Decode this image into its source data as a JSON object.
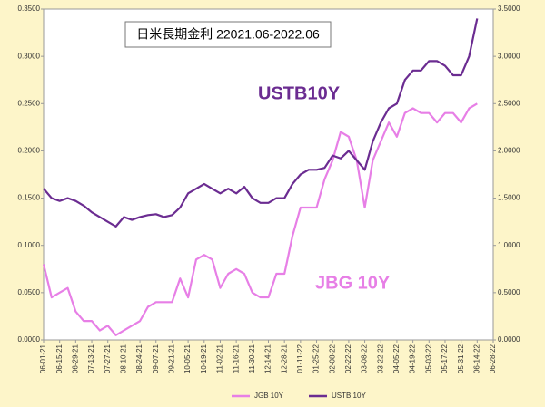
{
  "chart_data": {
    "type": "line",
    "title": "日米長期金利 22021.06-2022.06",
    "annotations": [
      "USTB10Y",
      "JBG 10Y"
    ],
    "categories": [
      "06-01-21",
      null,
      "06-15-21",
      null,
      "06-29-21",
      null,
      "07-13-21",
      null,
      "07-27-21",
      null,
      "08-10-21",
      null,
      "08-24-21",
      null,
      "09-07-21",
      null,
      "09-21-21",
      null,
      "10-05-21",
      null,
      "10-19-21",
      null,
      "11-02-21",
      null,
      "11-16-21",
      null,
      "11-30-21",
      null,
      "12-14-21",
      null,
      "12-28-21",
      null,
      "01-11-22",
      null,
      "01-25-22",
      null,
      "02-08-22",
      null,
      "02-22-22",
      null,
      "03-08-22",
      null,
      "03-22-22",
      null,
      "04-05-22",
      null,
      "04-19-22",
      null,
      "05-03-22",
      null,
      "05-17-22",
      null,
      "05-31-22",
      null,
      "06-14-22",
      null,
      "06-28-22"
    ],
    "series": [
      {
        "name": "JGB 10Y",
        "color": "#e77fe6",
        "values": [
          0.08,
          0.045,
          0.05,
          0.055,
          0.03,
          0.02,
          0.02,
          0.01,
          0.015,
          0.005,
          0.01,
          0.015,
          0.02,
          0.035,
          0.04,
          0.04,
          0.04,
          0.065,
          0.045,
          0.085,
          0.09,
          0.085,
          0.055,
          0.07,
          0.075,
          0.07,
          0.05,
          0.045,
          0.045,
          0.07,
          0.07,
          0.11,
          0.14,
          0.14,
          0.14,
          0.17,
          0.19,
          0.22,
          0.215,
          0.19,
          0.14,
          0.19,
          0.21,
          0.23,
          0.215,
          0.24,
          0.245,
          0.24,
          0.24,
          0.23,
          0.24,
          0.24,
          0.23,
          0.245,
          0.25,
          null,
          null
        ]
      },
      {
        "name": "USTB 10Y",
        "color": "#6b2c91",
        "axis": "y2",
        "values": [
          1.6,
          1.5,
          1.47,
          1.5,
          1.47,
          1.42,
          1.35,
          1.3,
          1.25,
          1.2,
          1.3,
          1.27,
          1.3,
          1.32,
          1.33,
          1.3,
          1.32,
          1.4,
          1.55,
          1.6,
          1.65,
          1.6,
          1.55,
          1.6,
          1.55,
          1.62,
          1.5,
          1.45,
          1.45,
          1.5,
          1.5,
          1.65,
          1.75,
          1.8,
          1.8,
          1.82,
          1.95,
          1.92,
          2.0,
          1.9,
          1.8,
          2.1,
          2.3,
          2.45,
          2.5,
          2.75,
          2.85,
          2.85,
          2.95,
          2.95,
          2.9,
          2.8,
          2.8,
          3.0,
          3.4,
          null,
          null
        ]
      }
    ],
    "ylim": [
      0,
      0.35
    ],
    "yticks": [
      {
        "value": 0,
        "label": "0.0000"
      },
      {
        "value": 0.05,
        "label": "0.0500"
      },
      {
        "value": 0.1,
        "label": "0.1000"
      },
      {
        "value": 0.15,
        "label": "0.1500"
      },
      {
        "value": 0.2,
        "label": "0.2000"
      },
      {
        "value": 0.25,
        "label": "0.2500"
      },
      {
        "value": 0.3,
        "label": "0.3000"
      },
      {
        "value": 0.35,
        "label": "0.3500"
      }
    ],
    "y2lim": [
      0,
      3.5
    ],
    "y2ticks": [
      {
        "value": 0,
        "label": "0.0000"
      },
      {
        "value": 0.5,
        "label": "0.5000"
      },
      {
        "value": 1,
        "label": "1.0000"
      },
      {
        "value": 1.5,
        "label": "1.5000"
      },
      {
        "value": 2,
        "label": "2.0000"
      },
      {
        "value": 2.5,
        "label": "2.5000"
      },
      {
        "value": 3,
        "label": "3.0000"
      },
      {
        "value": 3.5,
        "label": "3.5000"
      }
    ],
    "legend": "bottom"
  }
}
